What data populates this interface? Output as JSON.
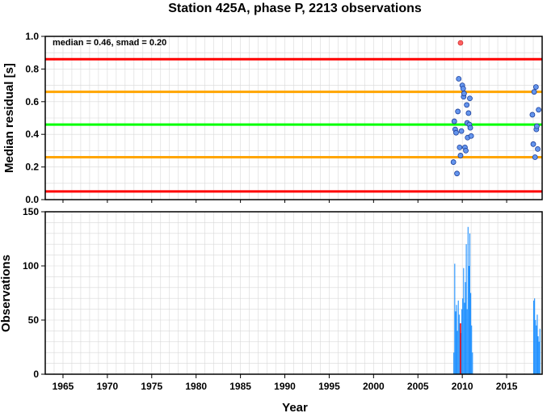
{
  "chart_data": [
    {
      "type": "scatter",
      "title": "Station 425A, phase P, 2213 observations",
      "ylabel": "Median residual [s]",
      "annotation": "median = 0.46, smad = 0.20",
      "xlim": [
        1963,
        2019
      ],
      "ylim": [
        0.0,
        1.0
      ],
      "grid": true,
      "yticks": [
        "0.0",
        "0.2",
        "0.4",
        "0.6",
        "0.8",
        "1.0"
      ],
      "reference_lines": [
        {
          "y": 0.86,
          "color": "#ff0000"
        },
        {
          "y": 0.66,
          "color": "#ffa500"
        },
        {
          "y": 0.46,
          "color": "#00ff00"
        },
        {
          "y": 0.26,
          "color": "#ffa500"
        },
        {
          "y": 0.05,
          "color": "#ff0000"
        }
      ],
      "points": [
        {
          "x": 2009.0,
          "y": 0.23
        },
        {
          "x": 2009.1,
          "y": 0.48
        },
        {
          "x": 2009.2,
          "y": 0.43
        },
        {
          "x": 2009.3,
          "y": 0.41
        },
        {
          "x": 2009.4,
          "y": 0.16
        },
        {
          "x": 2009.5,
          "y": 0.54
        },
        {
          "x": 2009.6,
          "y": 0.74
        },
        {
          "x": 2009.7,
          "y": 0.32
        },
        {
          "x": 2009.8,
          "y": 0.27
        },
        {
          "x": 2009.9,
          "y": 0.42
        },
        {
          "x": 2010.0,
          "y": 0.7
        },
        {
          "x": 2010.1,
          "y": 0.68
        },
        {
          "x": 2010.15,
          "y": 0.63
        },
        {
          "x": 2010.2,
          "y": 0.65
        },
        {
          "x": 2010.3,
          "y": 0.32
        },
        {
          "x": 2010.4,
          "y": 0.3
        },
        {
          "x": 2010.5,
          "y": 0.58
        },
        {
          "x": 2010.55,
          "y": 0.47
        },
        {
          "x": 2010.6,
          "y": 0.38
        },
        {
          "x": 2010.7,
          "y": 0.53
        },
        {
          "x": 2010.8,
          "y": 0.46
        },
        {
          "x": 2010.85,
          "y": 0.62
        },
        {
          "x": 2010.9,
          "y": 0.44
        },
        {
          "x": 2011.0,
          "y": 0.39
        },
        {
          "x": 2017.9,
          "y": 0.52
        },
        {
          "x": 2018.0,
          "y": 0.34
        },
        {
          "x": 2018.1,
          "y": 0.66
        },
        {
          "x": 2018.2,
          "y": 0.26
        },
        {
          "x": 2018.3,
          "y": 0.69
        },
        {
          "x": 2018.35,
          "y": 0.43
        },
        {
          "x": 2018.4,
          "y": 0.45
        },
        {
          "x": 2018.5,
          "y": 0.31
        },
        {
          "x": 2018.6,
          "y": 0.55
        }
      ],
      "point_color": "#6495ed",
      "outlier": {
        "x": 2009.8,
        "y": 0.96,
        "color": "#ff6060"
      }
    },
    {
      "type": "bar",
      "ylabel": "Observations",
      "xlabel": "Year",
      "xlim": [
        1963,
        2019
      ],
      "ylim": [
        0,
        150
      ],
      "grid": true,
      "xticks": [
        1965,
        1970,
        1975,
        1980,
        1985,
        1990,
        1995,
        2000,
        2005,
        2010,
        2015
      ],
      "yticks": [
        0,
        50,
        100,
        150
      ],
      "bar_color": "#1e90ff",
      "marker_line": {
        "x": 2009.8,
        "color": "#ff0000",
        "height": 47
      },
      "bins": [
        {
          "x": 2009.0,
          "v": 20
        },
        {
          "x": 2009.1,
          "v": 102
        },
        {
          "x": 2009.2,
          "v": 58
        },
        {
          "x": 2009.3,
          "v": 64
        },
        {
          "x": 2009.4,
          "v": 40
        },
        {
          "x": 2009.5,
          "v": 68
        },
        {
          "x": 2009.6,
          "v": 55
        },
        {
          "x": 2009.7,
          "v": 47
        },
        {
          "x": 2009.8,
          "v": 38
        },
        {
          "x": 2009.9,
          "v": 60
        },
        {
          "x": 2010.0,
          "v": 70
        },
        {
          "x": 2010.1,
          "v": 98
        },
        {
          "x": 2010.2,
          "v": 66
        },
        {
          "x": 2010.3,
          "v": 85
        },
        {
          "x": 2010.4,
          "v": 120
        },
        {
          "x": 2010.5,
          "v": 60
        },
        {
          "x": 2010.6,
          "v": 136
        },
        {
          "x": 2010.7,
          "v": 100
        },
        {
          "x": 2010.8,
          "v": 130
        },
        {
          "x": 2010.9,
          "v": 75
        },
        {
          "x": 2011.0,
          "v": 45
        },
        {
          "x": 2011.1,
          "v": 20
        },
        {
          "x": 2018.0,
          "v": 68
        },
        {
          "x": 2018.1,
          "v": 70
        },
        {
          "x": 2018.2,
          "v": 50
        },
        {
          "x": 2018.3,
          "v": 45
        },
        {
          "x": 2018.4,
          "v": 55
        },
        {
          "x": 2018.5,
          "v": 35
        },
        {
          "x": 2018.6,
          "v": 30
        },
        {
          "x": 2018.7,
          "v": 42
        }
      ]
    }
  ]
}
